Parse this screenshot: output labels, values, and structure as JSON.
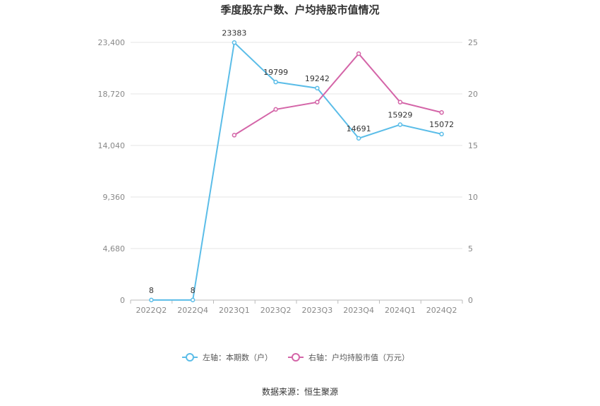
{
  "chart_data": {
    "type": "line",
    "title": "季度股东户数、户均持股市值情况",
    "categories": [
      "2022Q2",
      "2022Q4",
      "2023Q1",
      "2023Q2",
      "2023Q3",
      "2023Q4",
      "2024Q1",
      "2024Q2"
    ],
    "y_left": {
      "ylim": [
        0,
        23400
      ],
      "ticks": [
        "0",
        "4,680",
        "9,360",
        "14,040",
        "18,720",
        "23,400"
      ]
    },
    "y_right": {
      "ylim": [
        0,
        25
      ],
      "ticks": [
        "0",
        "5",
        "10",
        "15",
        "20",
        "25"
      ]
    },
    "series": [
      {
        "name": "左轴：本期数（户）",
        "axis": "left",
        "color": "#5bbde8",
        "values": [
          8,
          8,
          23383,
          19799,
          19242,
          14691,
          15929,
          15072
        ],
        "labels": [
          "8",
          "8",
          "23383",
          "19799",
          "19242",
          "14691",
          "15929",
          "15072"
        ]
      },
      {
        "name": "右轴：户均持股市值（万元）",
        "axis": "right",
        "color": "#d465a8",
        "values": [
          null,
          null,
          16.0,
          18.5,
          19.2,
          23.9,
          19.2,
          18.2
        ]
      }
    ],
    "grid": true,
    "legend": "bottom"
  },
  "source_text": "数据来源：恒生聚源"
}
